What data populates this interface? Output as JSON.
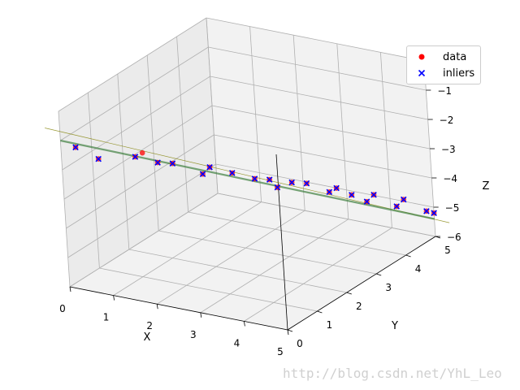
{
  "chart_data": {
    "type": "scatter",
    "projection": "3d",
    "grid": true,
    "xlabel": "X",
    "ylabel": "Y",
    "zlabel": "Z",
    "xlim": [
      0,
      5
    ],
    "ylim": [
      0,
      5
    ],
    "zlim": [
      -6,
      0
    ],
    "xticks": [
      "0",
      "1",
      "2",
      "3",
      "4",
      "5"
    ],
    "yticks": [
      "0",
      "1",
      "2",
      "3",
      "4",
      "5"
    ],
    "zticks": [
      "0",
      "−1",
      "−2",
      "−3",
      "−4",
      "−5",
      "−6"
    ],
    "legend_position": "top-right",
    "series": [
      {
        "name": "data",
        "marker": "circle",
        "color": "#ff0000",
        "points": [
          {
            "x": 0.2,
            "y": 0.2,
            "z": -1.3
          },
          {
            "x": 0.5,
            "y": 0.5,
            "z": -1.8
          },
          {
            "x": 1.0,
            "y": 1.0,
            "z": -1.9
          },
          {
            "x": 1.3,
            "y": 1.3,
            "z": -2.2
          },
          {
            "x": 1.5,
            "y": 1.5,
            "z": -2.3
          },
          {
            "x": 1.9,
            "y": 1.9,
            "z": -2.8
          },
          {
            "x": 2.0,
            "y": 2.0,
            "z": -2.6
          },
          {
            "x": 2.3,
            "y": 2.3,
            "z": -2.9
          },
          {
            "x": 2.6,
            "y": 2.6,
            "z": -3.2
          },
          {
            "x": 2.8,
            "y": 2.8,
            "z": -3.3
          },
          {
            "x": 2.9,
            "y": 2.9,
            "z": -3.6
          },
          {
            "x": 3.1,
            "y": 3.1,
            "z": -3.5
          },
          {
            "x": 3.3,
            "y": 3.3,
            "z": -3.6
          },
          {
            "x": 3.6,
            "y": 3.6,
            "z": -4.0
          },
          {
            "x": 3.7,
            "y": 3.7,
            "z": -3.9
          },
          {
            "x": 3.9,
            "y": 3.9,
            "z": -4.2
          },
          {
            "x": 4.1,
            "y": 4.1,
            "z": -4.5
          },
          {
            "x": 4.2,
            "y": 4.2,
            "z": -4.3
          },
          {
            "x": 4.5,
            "y": 4.5,
            "z": -4.8
          },
          {
            "x": 4.6,
            "y": 4.6,
            "z": -4.6
          },
          {
            "x": 4.9,
            "y": 4.9,
            "z": -5.1
          },
          {
            "x": 5.0,
            "y": 5.0,
            "z": -5.2
          },
          {
            "x": 1.1,
            "y": 1.1,
            "z": -1.8
          }
        ]
      },
      {
        "name": "inliers",
        "marker": "x",
        "color": "#0000ff",
        "points": [
          {
            "x": 0.2,
            "y": 0.2,
            "z": -1.3
          },
          {
            "x": 0.5,
            "y": 0.5,
            "z": -1.8
          },
          {
            "x": 1.0,
            "y": 1.0,
            "z": -1.9
          },
          {
            "x": 1.3,
            "y": 1.3,
            "z": -2.2
          },
          {
            "x": 1.5,
            "y": 1.5,
            "z": -2.3
          },
          {
            "x": 1.9,
            "y": 1.9,
            "z": -2.8
          },
          {
            "x": 2.0,
            "y": 2.0,
            "z": -2.6
          },
          {
            "x": 2.3,
            "y": 2.3,
            "z": -2.9
          },
          {
            "x": 2.6,
            "y": 2.6,
            "z": -3.2
          },
          {
            "x": 2.8,
            "y": 2.8,
            "z": -3.3
          },
          {
            "x": 2.9,
            "y": 2.9,
            "z": -3.6
          },
          {
            "x": 3.1,
            "y": 3.1,
            "z": -3.5
          },
          {
            "x": 3.3,
            "y": 3.3,
            "z": -3.6
          },
          {
            "x": 3.6,
            "y": 3.6,
            "z": -4.0
          },
          {
            "x": 3.7,
            "y": 3.7,
            "z": -3.9
          },
          {
            "x": 3.9,
            "y": 3.9,
            "z": -4.2
          },
          {
            "x": 4.1,
            "y": 4.1,
            "z": -4.5
          },
          {
            "x": 4.2,
            "y": 4.2,
            "z": -4.3
          },
          {
            "x": 4.5,
            "y": 4.5,
            "z": -4.8
          },
          {
            "x": 4.6,
            "y": 4.6,
            "z": -4.6
          },
          {
            "x": 4.9,
            "y": 4.9,
            "z": -5.1
          },
          {
            "x": 5.0,
            "y": 5.0,
            "z": -5.2
          }
        ]
      }
    ],
    "fit_lines": [
      {
        "color": "#808000",
        "from": {
          "x": -0.2,
          "y": -0.2,
          "z": -0.5
        },
        "to": {
          "x": 5.2,
          "y": 5.2,
          "z": -5.6
        }
      },
      {
        "color": "#408040",
        "from": {
          "x": 0.0,
          "y": 0.0,
          "z": -1.0
        },
        "to": {
          "x": 5.0,
          "y": 5.0,
          "z": -5.4
        }
      }
    ]
  },
  "watermark": "http://blog.csdn.net/YhL_Leo"
}
